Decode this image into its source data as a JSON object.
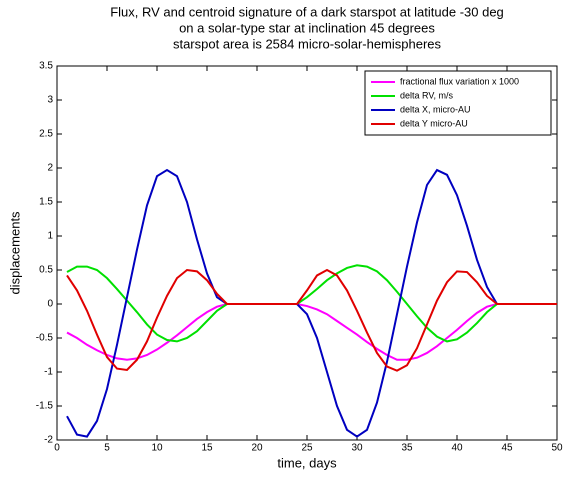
{
  "chart_data": {
    "type": "line",
    "title": [
      "Flux, RV and centroid signature of a dark starspot at latitude -30 deg",
      "on a solar-type star at inclination 45 degrees",
      "starspot area is 2584 micro-solar-hemispheres"
    ],
    "xlabel": "time, days",
    "ylabel": "displacements",
    "x": [
      1,
      2,
      3,
      4,
      5,
      6,
      7,
      8,
      9,
      10,
      11,
      12,
      13,
      14,
      15,
      16,
      17,
      18,
      19,
      20,
      21,
      22,
      23,
      24,
      25,
      26,
      27,
      28,
      29,
      30,
      31,
      32,
      33,
      34,
      35,
      36,
      37,
      38,
      39,
      40,
      41,
      42,
      43,
      44,
      45,
      46,
      47,
      48,
      49,
      50
    ],
    "series": [
      {
        "name": "fractional flux variation x 1000",
        "color": "#ff00ff",
        "values": [
          -0.42,
          -0.5,
          -0.6,
          -0.68,
          -0.75,
          -0.8,
          -0.82,
          -0.8,
          -0.75,
          -0.67,
          -0.57,
          -0.46,
          -0.34,
          -0.22,
          -0.12,
          -0.04,
          0,
          0,
          0,
          0,
          0,
          0,
          0,
          0,
          -0.03,
          -0.08,
          -0.15,
          -0.25,
          -0.35,
          -0.45,
          -0.56,
          -0.66,
          -0.75,
          -0.82,
          -0.82,
          -0.79,
          -0.72,
          -0.62,
          -0.5,
          -0.38,
          -0.25,
          -0.13,
          -0.04,
          0,
          0,
          0,
          0,
          0,
          0,
          0
        ]
      },
      {
        "name": "delta RV, m/s",
        "color": "#00e000",
        "values": [
          0.47,
          0.55,
          0.55,
          0.5,
          0.38,
          0.22,
          0.05,
          -0.12,
          -0.3,
          -0.45,
          -0.53,
          -0.55,
          -0.5,
          -0.4,
          -0.25,
          -0.1,
          0,
          0,
          0,
          0,
          0,
          0,
          0,
          0,
          0.1,
          0.22,
          0.35,
          0.45,
          0.53,
          0.57,
          0.55,
          0.48,
          0.35,
          0.18,
          0,
          -0.18,
          -0.35,
          -0.48,
          -0.55,
          -0.52,
          -0.42,
          -0.28,
          -0.12,
          0,
          0,
          0,
          0,
          0,
          0,
          0
        ]
      },
      {
        "name": "delta X, micro-AU",
        "color": "#0000c0",
        "values": [
          -1.65,
          -1.92,
          -1.95,
          -1.72,
          -1.25,
          -0.6,
          0.1,
          0.8,
          1.45,
          1.88,
          1.97,
          1.88,
          1.5,
          0.95,
          0.45,
          0.1,
          0,
          0,
          0,
          0,
          0,
          0,
          0,
          0,
          -0.15,
          -0.5,
          -1.0,
          -1.5,
          -1.85,
          -1.95,
          -1.85,
          -1.45,
          -0.85,
          -0.15,
          0.55,
          1.2,
          1.75,
          1.97,
          1.9,
          1.6,
          1.15,
          0.65,
          0.25,
          0,
          0,
          0,
          0,
          0,
          0,
          0
        ]
      },
      {
        "name": "delta Y micro-AU",
        "color": "#e00000",
        "values": [
          0.42,
          0.2,
          -0.1,
          -0.45,
          -0.78,
          -0.95,
          -0.97,
          -0.82,
          -0.55,
          -0.2,
          0.12,
          0.38,
          0.5,
          0.48,
          0.35,
          0.15,
          0,
          0,
          0,
          0,
          0,
          0,
          0,
          0,
          0.2,
          0.42,
          0.5,
          0.42,
          0.2,
          -0.1,
          -0.42,
          -0.72,
          -0.92,
          -0.98,
          -0.9,
          -0.65,
          -0.3,
          0.05,
          0.32,
          0.48,
          0.47,
          0.32,
          0.12,
          0,
          0,
          0,
          0,
          0,
          0,
          0
        ]
      }
    ],
    "xlim": [
      0,
      50
    ],
    "xticks": [
      0,
      5,
      10,
      15,
      20,
      25,
      30,
      35,
      40,
      45,
      50
    ],
    "ylim": [
      -2,
      3.5
    ],
    "yticks": [
      -2,
      -1.5,
      -1,
      -0.5,
      0,
      0.5,
      1,
      1.5,
      2,
      2.5,
      3,
      3.5
    ],
    "grid": false,
    "legend": "upper right"
  }
}
